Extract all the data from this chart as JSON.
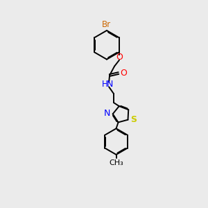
{
  "bg_color": "#ebebeb",
  "bond_color": "#000000",
  "N_color": "#0000ff",
  "O_color": "#ff0000",
  "S_color": "#cccc00",
  "Br_color": "#cc6600",
  "line_width": 1.4,
  "dbo": 0.055,
  "xlim": [
    0,
    10
  ],
  "ylim": [
    0,
    15
  ]
}
